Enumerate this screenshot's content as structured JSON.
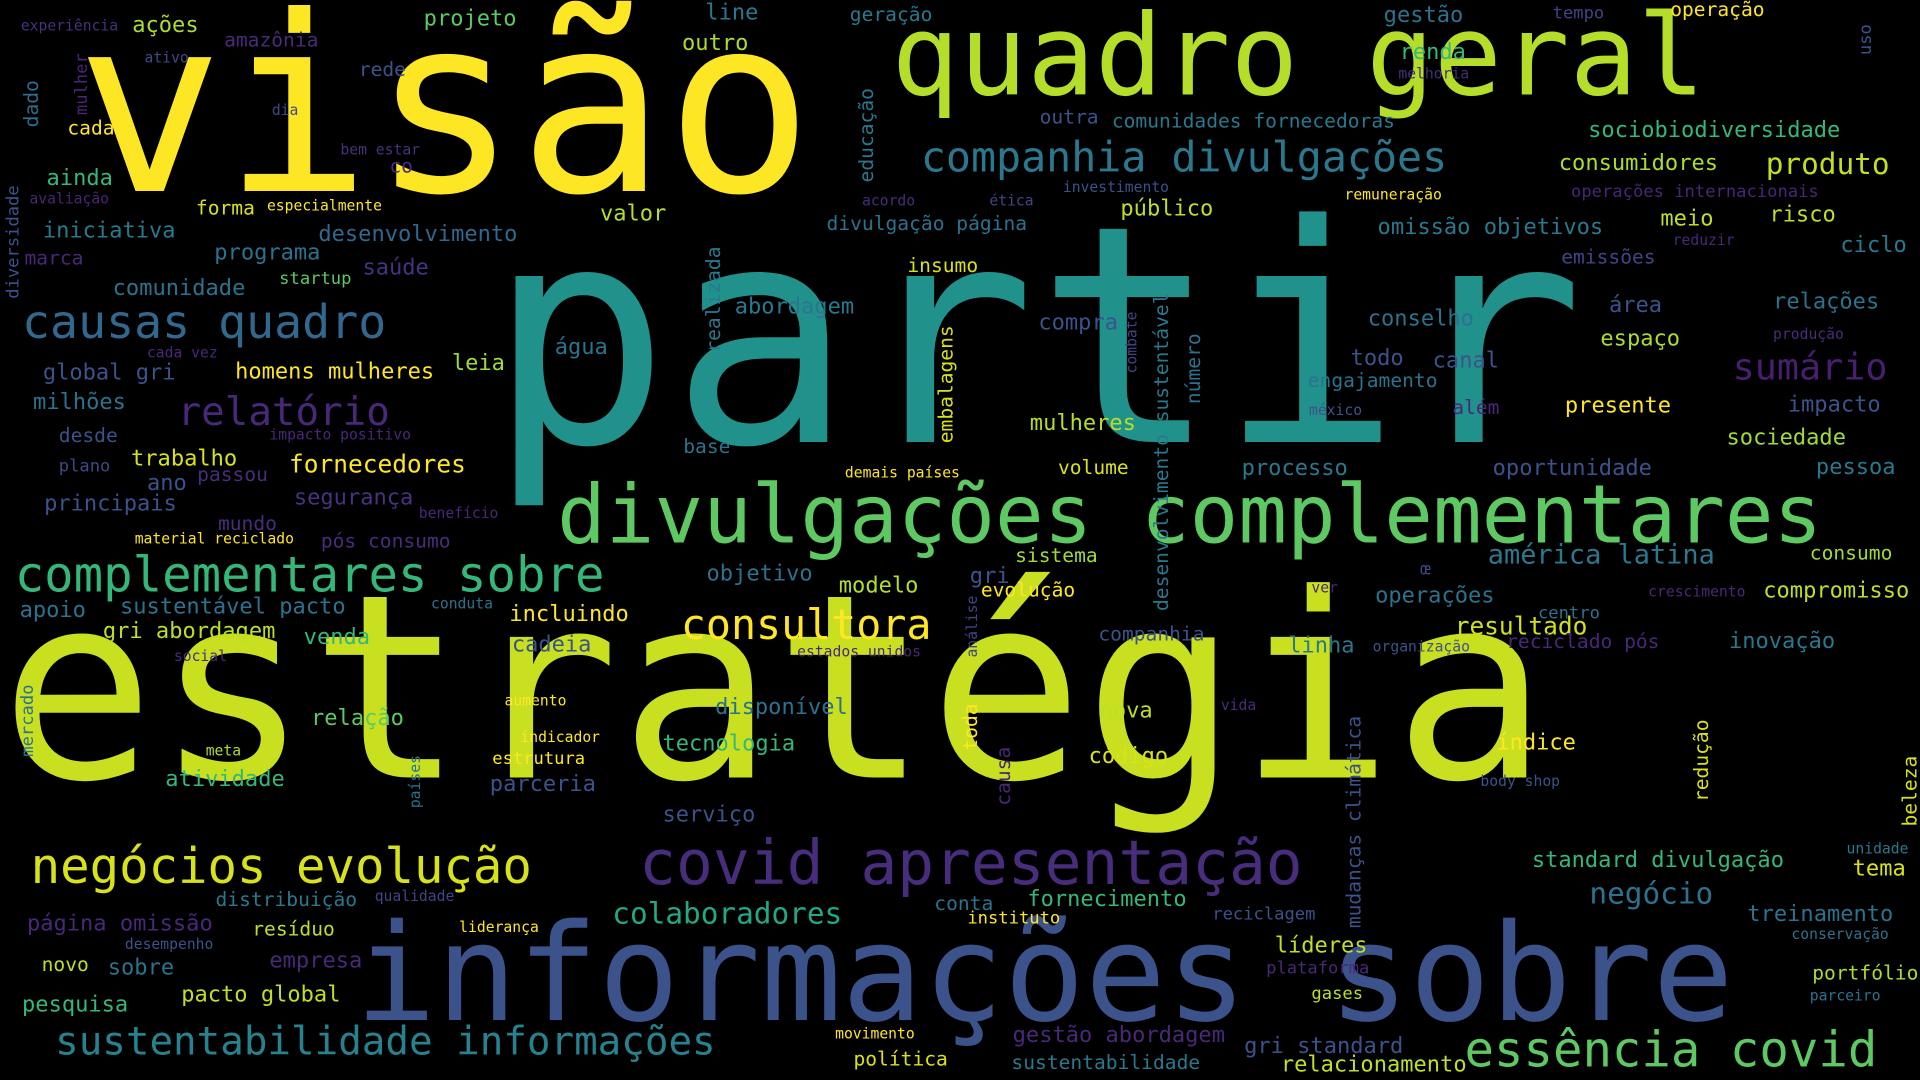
{
  "words": [
    {
      "text": "visão",
      "color": "#fde725",
      "weight": 5
    },
    {
      "text": "quadro geral",
      "color": "#b5de2b",
      "weight": 4
    },
    {
      "text": "partir",
      "color": "#21918c",
      "weight": 5
    },
    {
      "text": "estratégia",
      "color": "#c8e020",
      "weight": 5
    },
    {
      "text": "informações sobre",
      "color": "#3b528b",
      "weight": 4
    },
    {
      "text": "divulgações complementares",
      "color": "#5ec962",
      "weight": 4
    },
    {
      "text": "complementares sobre",
      "color": "#35b779",
      "weight": 3
    },
    {
      "text": "covid apresentação",
      "color": "#472d7b",
      "weight": 3
    },
    {
      "text": "negócios evolução",
      "color": "#d8e219",
      "weight": 3
    },
    {
      "text": "causas quadro",
      "color": "#31688e",
      "weight": 3
    },
    {
      "text": "companhia divulgações",
      "color": "#2a788e",
      "weight": 3
    },
    {
      "text": "essência covid",
      "color": "#5ec962",
      "weight": 3
    },
    {
      "text": "sustentabilidade informações",
      "color": "#26828e",
      "weight": 3
    },
    {
      "text": "consultora",
      "color": "#fde725",
      "weight": 3
    },
    {
      "text": "relatório",
      "color": "#482878",
      "weight": 2
    },
    {
      "text": "sumário",
      "color": "#481f70",
      "weight": 2
    },
    {
      "text": "colaboradores",
      "color": "#22a884",
      "weight": 2
    },
    {
      "text": "produto",
      "color": "#c2df23",
      "weight": 2
    },
    {
      "text": "fornecedores",
      "color": "#fde725",
      "weight": 2
    },
    {
      "text": "américa latina",
      "color": "#2a788e",
      "weight": 2
    },
    {
      "text": "resultado",
      "color": "#d0e11c",
      "weight": 2
    },
    {
      "text": "negócio",
      "color": "#2c728e",
      "weight": 2
    },
    {
      "text": "experiência",
      "color": "#46327e",
      "weight": 1
    },
    {
      "text": "ações",
      "color": "#aadc32",
      "weight": 1
    },
    {
      "text": "projeto",
      "color": "#5ec962",
      "weight": 1
    },
    {
      "text": "line",
      "color": "#2a788e",
      "weight": 1
    },
    {
      "text": "geração",
      "color": "#2a788e",
      "weight": 1
    },
    {
      "text": "gestão",
      "color": "#2c728e",
      "weight": 1
    },
    {
      "text": "tempo",
      "color": "#414487",
      "weight": 1
    },
    {
      "text": "operação",
      "color": "#fde725",
      "weight": 1
    },
    {
      "text": "uso",
      "color": "#3b528b",
      "weight": 1
    },
    {
      "text": "amazônia",
      "color": "#472c7a",
      "weight": 1
    },
    {
      "text": "outro",
      "color": "#addc30",
      "weight": 1
    },
    {
      "text": "ativo",
      "color": "#3e4989",
      "weight": 1
    },
    {
      "text": "mulher",
      "color": "#482677",
      "weight": 1
    },
    {
      "text": "rede",
      "color": "#3b528b",
      "weight": 1
    },
    {
      "text": "renda",
      "color": "#35b779",
      "weight": 1
    },
    {
      "text": "melhoria",
      "color": "#472d7b",
      "weight": 1
    },
    {
      "text": "dado",
      "color": "#2f6c8e",
      "weight": 1
    },
    {
      "text": "dia",
      "color": "#3e4989",
      "weight": 1
    },
    {
      "text": "educação",
      "color": "#2a788e",
      "weight": 1
    },
    {
      "text": "cada",
      "color": "#fde725",
      "weight": 1
    },
    {
      "text": "outra",
      "color": "#3b528b",
      "weight": 1
    },
    {
      "text": "comunidades fornecedoras",
      "color": "#2a788e",
      "weight": 1
    },
    {
      "text": "sociobiodiversidade",
      "color": "#35b779",
      "weight": 1
    },
    {
      "text": "bem estar",
      "color": "#46327e",
      "weight": 1
    },
    {
      "text": "co",
      "color": "#472d7b",
      "weight": 1
    },
    {
      "text": "consumidores",
      "color": "#aadc32",
      "weight": 1
    },
    {
      "text": "ainda",
      "color": "#35b779",
      "weight": 1
    },
    {
      "text": "diversidade",
      "color": "#3b528b",
      "weight": 1
    },
    {
      "text": "avaliação",
      "color": "#482677",
      "weight": 1
    },
    {
      "text": "forma",
      "color": "#d8e219",
      "weight": 1
    },
    {
      "text": "especialmente",
      "color": "#fde725",
      "weight": 1
    },
    {
      "text": "acordo",
      "color": "#472d7b",
      "weight": 1
    },
    {
      "text": "ética",
      "color": "#414487",
      "weight": 1
    },
    {
      "text": "investimento",
      "color": "#3b528b",
      "weight": 1
    },
    {
      "text": "remuneração",
      "color": "#fde725",
      "weight": 1
    },
    {
      "text": "operações internacionais",
      "color": "#482677",
      "weight": 1
    },
    {
      "text": "iniciativa",
      "color": "#2a788e",
      "weight": 1
    },
    {
      "text": "desenvolvimento",
      "color": "#31688e",
      "weight": 1
    },
    {
      "text": "valor",
      "color": "#b5de2b",
      "weight": 1
    },
    {
      "text": "divulgação página",
      "color": "#2c728e",
      "weight": 1
    },
    {
      "text": "público",
      "color": "#bddf26",
      "weight": 1
    },
    {
      "text": "omissão objetivos",
      "color": "#2a788e",
      "weight": 1
    },
    {
      "text": "meio",
      "color": "#bddf26",
      "weight": 1
    },
    {
      "text": "risco",
      "color": "#bddf26",
      "weight": 1
    },
    {
      "text": "reduzir",
      "color": "#482878",
      "weight": 1
    },
    {
      "text": "ciclo",
      "color": "#2a788e",
      "weight": 1
    },
    {
      "text": "marca",
      "color": "#482878",
      "weight": 1
    },
    {
      "text": "programa",
      "color": "#2c728e",
      "weight": 1
    },
    {
      "text": "saúde",
      "color": "#46327e",
      "weight": 1
    },
    {
      "text": "insumo",
      "color": "#d8e219",
      "weight": 1
    },
    {
      "text": "emissões",
      "color": "#414487",
      "weight": 1
    },
    {
      "text": "comunidade",
      "color": "#2c728e",
      "weight": 1
    },
    {
      "text": "startup",
      "color": "#5ec962",
      "weight": 1
    },
    {
      "text": "realizada",
      "color": "#2a788e",
      "weight": 1
    },
    {
      "text": "abordagem",
      "color": "#2a788e",
      "weight": 1
    },
    {
      "text": "combate",
      "color": "#414487",
      "weight": 1
    },
    {
      "text": "compra",
      "color": "#3b528b",
      "weight": 1
    },
    {
      "text": "desenvolvimento sustentável",
      "color": "#2a788e",
      "weight": 1
    },
    {
      "text": "conselho",
      "color": "#2c728e",
      "weight": 1
    },
    {
      "text": "área",
      "color": "#3b528b",
      "weight": 1
    },
    {
      "text": "relações",
      "color": "#2c728e",
      "weight": 1
    },
    {
      "text": "cada vez",
      "color": "#482878",
      "weight": 1
    },
    {
      "text": "água",
      "color": "#2c728e",
      "weight": 1
    },
    {
      "text": "número",
      "color": "#2c728e",
      "weight": 1
    },
    {
      "text": "todo",
      "color": "#3b528b",
      "weight": 1
    },
    {
      "text": "canal",
      "color": "#3b528b",
      "weight": 1
    },
    {
      "text": "espaço",
      "color": "#aadc32",
      "weight": 1
    },
    {
      "text": "produção",
      "color": "#472d7b",
      "weight": 1
    },
    {
      "text": "global gri",
      "color": "#3b528b",
      "weight": 1
    },
    {
      "text": "homens mulheres",
      "color": "#fde725",
      "weight": 1
    },
    {
      "text": "leia",
      "color": "#a0da39",
      "weight": 1
    },
    {
      "text": "engajamento",
      "color": "#2c728e",
      "weight": 1
    },
    {
      "text": "milhões",
      "color": "#2c728e",
      "weight": 1
    },
    {
      "text": "embalagens",
      "color": "#d8e219",
      "weight": 1
    },
    {
      "text": "além",
      "color": "#482878",
      "weight": 1
    },
    {
      "text": "presente",
      "color": "#fde725",
      "weight": 1
    },
    {
      "text": "impacto",
      "color": "#3b528b",
      "weight": 1
    },
    {
      "text": "méxico",
      "color": "#3b528b",
      "weight": 1
    },
    {
      "text": "desde",
      "color": "#3b528b",
      "weight": 1
    },
    {
      "text": "impacto positivo",
      "color": "#482878",
      "weight": 1
    },
    {
      "text": "mulheres",
      "color": "#b5de2b",
      "weight": 1
    },
    {
      "text": "sociedade",
      "color": "#a0da39",
      "weight": 1
    },
    {
      "text": "plano",
      "color": "#3e4989",
      "weight": 1
    },
    {
      "text": "trabalho",
      "color": "#d8e219",
      "weight": 1
    },
    {
      "text": "passou",
      "color": "#472d7b",
      "weight": 1
    },
    {
      "text": "base",
      "color": "#2c728e",
      "weight": 1
    },
    {
      "text": "demais países",
      "color": "#fde725",
      "weight": 1
    },
    {
      "text": "volume",
      "color": "#d8e219",
      "weight": 1
    },
    {
      "text": "processo",
      "color": "#2a788e",
      "weight": 1
    },
    {
      "text": "oportunidade",
      "color": "#3b528b",
      "weight": 1
    },
    {
      "text": "pessoa",
      "color": "#2a788e",
      "weight": 1
    },
    {
      "text": "ano",
      "color": "#3b528b",
      "weight": 1
    },
    {
      "text": "principais",
      "color": "#3b528b",
      "weight": 1
    },
    {
      "text": "segurança",
      "color": "#46327e",
      "weight": 1
    },
    {
      "text": "benefício",
      "color": "#482878",
      "weight": 1
    },
    {
      "text": "mundo",
      "color": "#472d7b",
      "weight": 1
    },
    {
      "text": "material reciclado",
      "color": "#fde725",
      "weight": 1
    },
    {
      "text": "pós consumo",
      "color": "#472d7b",
      "weight": 1
    },
    {
      "text": "gri",
      "color": "#3b528b",
      "weight": 1
    },
    {
      "text": "sistema",
      "color": "#a0da39",
      "weight": 1
    },
    {
      "text": "objetivo",
      "color": "#2c728e",
      "weight": 1
    },
    {
      "text": "modelo",
      "color": "#b5de2b",
      "weight": 1
    },
    {
      "text": "consumo",
      "color": "#a0da39",
      "weight": 1
    },
    {
      "text": "œ",
      "color": "#3e4989",
      "weight": 1
    },
    {
      "text": "ver",
      "color": "#482878",
      "weight": 1
    },
    {
      "text": "crescimento",
      "color": "#482878",
      "weight": 1
    },
    {
      "text": "compromisso",
      "color": "#bddf26",
      "weight": 1
    },
    {
      "text": "apoio",
      "color": "#2c728e",
      "weight": 1
    },
    {
      "text": "sustentável pacto",
      "color": "#2c728e",
      "weight": 1
    },
    {
      "text": "conduta",
      "color": "#2c728e",
      "weight": 1
    },
    {
      "text": "incluindo",
      "color": "#fde725",
      "weight": 1
    },
    {
      "text": "evolução",
      "color": "#fde725",
      "weight": 1
    },
    {
      "text": "operações",
      "color": "#2c728e",
      "weight": 1
    },
    {
      "text": "centro",
      "color": "#2c728e",
      "weight": 1
    },
    {
      "text": "gri abordagem",
      "color": "#bddf26",
      "weight": 1
    },
    {
      "text": "venda",
      "color": "#35b779",
      "weight": 1
    },
    {
      "text": "cadeia",
      "color": "#3b528b",
      "weight": 1
    },
    {
      "text": "análise",
      "color": "#414487",
      "weight": 1
    },
    {
      "text": "companhia",
      "color": "#3b528b",
      "weight": 1
    },
    {
      "text": "linha",
      "color": "#2a788e",
      "weight": 1
    },
    {
      "text": "organização",
      "color": "#3b528b",
      "weight": 1
    },
    {
      "text": "reciclado pós",
      "color": "#482878",
      "weight": 1
    },
    {
      "text": "inovação",
      "color": "#2a788e",
      "weight": 1
    },
    {
      "text": "social",
      "color": "#472d7b",
      "weight": 1
    },
    {
      "text": "estados unidos",
      "color": "#482878",
      "weight": 1
    },
    {
      "text": "mercado",
      "color": "#2c728e",
      "weight": 1
    },
    {
      "text": "aumento",
      "color": "#fde725",
      "weight": 1
    },
    {
      "text": "disponível",
      "color": "#2c728e",
      "weight": 1
    },
    {
      "text": "nova",
      "color": "#bddf26",
      "weight": 1
    },
    {
      "text": "vida",
      "color": "#472d7b",
      "weight": 1
    },
    {
      "text": "mudanças climática",
      "color": "#3b528b",
      "weight": 1
    },
    {
      "text": "relação",
      "color": "#5ec962",
      "weight": 1
    },
    {
      "text": "indicador",
      "color": "#fde725",
      "weight": 1
    },
    {
      "text": "toda",
      "color": "#fde725",
      "weight": 1
    },
    {
      "text": "redução",
      "color": "#d8e219",
      "weight": 1
    },
    {
      "text": "meta",
      "color": "#aadc32",
      "weight": 1
    },
    {
      "text": "estrutura",
      "color": "#fde725",
      "weight": 1
    },
    {
      "text": "tecnologia",
      "color": "#35b779",
      "weight": 1
    },
    {
      "text": "código",
      "color": "#d8e219",
      "weight": 1
    },
    {
      "text": "índice",
      "color": "#fde725",
      "weight": 1
    },
    {
      "text": "países",
      "color": "#2c728e",
      "weight": 1
    },
    {
      "text": "atividade",
      "color": "#35b779",
      "weight": 1
    },
    {
      "text": "parceria",
      "color": "#3b528b",
      "weight": 1
    },
    {
      "text": "causa",
      "color": "#482878",
      "weight": 1
    },
    {
      "text": "body shop",
      "color": "#3b528b",
      "weight": 1
    },
    {
      "text": "serviço",
      "color": "#3b528b",
      "weight": 1
    },
    {
      "text": "beleza",
      "color": "#d8e219",
      "weight": 1
    },
    {
      "text": "standard divulgação",
      "color": "#35b779",
      "weight": 1
    },
    {
      "text": "unidade",
      "color": "#2a788e",
      "weight": 1
    },
    {
      "text": "tema",
      "color": "#d8e219",
      "weight": 1
    },
    {
      "text": "distribuição",
      "color": "#2a788e",
      "weight": 1
    },
    {
      "text": "qualidade",
      "color": "#414487",
      "weight": 1
    },
    {
      "text": "conta",
      "color": "#2c728e",
      "weight": 1
    },
    {
      "text": "fornecimento",
      "color": "#35b779",
      "weight": 1
    },
    {
      "text": "página omissão",
      "color": "#482878",
      "weight": 1
    },
    {
      "text": "resíduo",
      "color": "#bddf26",
      "weight": 1
    },
    {
      "text": "liderança",
      "color": "#fde725",
      "weight": 1
    },
    {
      "text": "instituto",
      "color": "#fde725",
      "weight": 1
    },
    {
      "text": "reciclagem",
      "color": "#3b528b",
      "weight": 1
    },
    {
      "text": "treinamento",
      "color": "#2c728e",
      "weight": 1
    },
    {
      "text": "desempenho",
      "color": "#3b528b",
      "weight": 1
    },
    {
      "text": "empresa",
      "color": "#482878",
      "weight": 1
    },
    {
      "text": "líderes",
      "color": "#bddf26",
      "weight": 1
    },
    {
      "text": "conservação",
      "color": "#2c728e",
      "weight": 1
    },
    {
      "text": "novo",
      "color": "#bddf26",
      "weight": 1
    },
    {
      "text": "sobre",
      "color": "#2c728e",
      "weight": 1
    },
    {
      "text": "plataforma",
      "color": "#482878",
      "weight": 1
    },
    {
      "text": "portfólio",
      "color": "#aadc32",
      "weight": 1
    },
    {
      "text": "pacto global",
      "color": "#bddf26",
      "weight": 1
    },
    {
      "text": "gases",
      "color": "#bddf26",
      "weight": 1
    },
    {
      "text": "parceiro",
      "color": "#2c728e",
      "weight": 1
    },
    {
      "text": "pesquisa",
      "color": "#35b779",
      "weight": 1
    },
    {
      "text": "movimento",
      "color": "#fde725",
      "weight": 1
    },
    {
      "text": "gestão abordagem",
      "color": "#482878",
      "weight": 1
    },
    {
      "text": "gri standard",
      "color": "#3b528b",
      "weight": 1
    },
    {
      "text": "política",
      "color": "#d8e219",
      "weight": 1
    },
    {
      "text": "sustentabilidade",
      "color": "#2a788e",
      "weight": 1
    },
    {
      "text": "relacionamento",
      "color": "#bddf26",
      "weight": 1
    }
  ]
}
